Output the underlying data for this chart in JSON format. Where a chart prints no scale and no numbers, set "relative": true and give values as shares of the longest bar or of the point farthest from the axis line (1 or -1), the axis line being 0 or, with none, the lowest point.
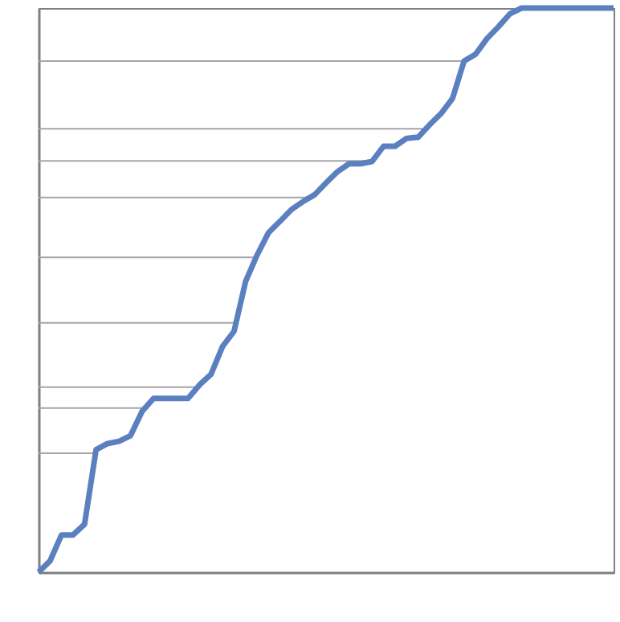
{
  "chart_data": {
    "type": "line",
    "relative": true,
    "categories": [
      null,
      null,
      null,
      null,
      null,
      null,
      null,
      null,
      null,
      null,
      null,
      null,
      null,
      null,
      null,
      null,
      null,
      null,
      null,
      null,
      null,
      null,
      null,
      null,
      null,
      null,
      null,
      null,
      null,
      null,
      null,
      null,
      null,
      null,
      null,
      null,
      null,
      null,
      null,
      null,
      null,
      null,
      null,
      null,
      null,
      null,
      null,
      null,
      null,
      null,
      null
    ],
    "series": [
      {
        "color": "#5b80bf",
        "values": [
          0,
          0.02,
          0.066,
          0.066,
          0.085,
          0.217,
          0.228,
          0.232,
          0.242,
          0.285,
          0.308,
          0.308,
          0.308,
          0.308,
          0.332,
          0.351,
          0.4,
          0.427,
          0.515,
          0.562,
          0.602,
          0.622,
          0.643,
          0.657,
          0.669,
          0.69,
          0.71,
          0.724,
          0.724,
          0.728,
          0.755,
          0.755,
          0.769,
          0.771,
          0.793,
          0.813,
          0.84,
          0.906,
          0.918,
          0.946,
          0.967,
          0.99,
          1,
          1,
          1,
          1,
          1,
          1,
          1,
          1,
          1
        ]
      }
    ],
    "ref_lines": [
      {
        "axis": "y",
        "value": 0.906,
        "color": "#a6a6a6"
      },
      {
        "axis": "y",
        "value": 0.786,
        "color": "#a6a6a6"
      },
      {
        "axis": "y",
        "value": 0.729,
        "color": "#a6a6a6"
      },
      {
        "axis": "y",
        "value": 0.664,
        "color": "#a6a6a6"
      },
      {
        "axis": "y",
        "value": 0.558,
        "color": "#a6a6a6"
      },
      {
        "axis": "y",
        "value": 0.442,
        "color": "#a6a6a6"
      },
      {
        "axis": "y",
        "value": 0.328,
        "color": "#a6a6a6"
      },
      {
        "axis": "y",
        "value": 0.291,
        "color": "#a6a6a6"
      },
      {
        "axis": "y",
        "value": 0.211,
        "color": "#a6a6a6"
      }
    ]
  }
}
